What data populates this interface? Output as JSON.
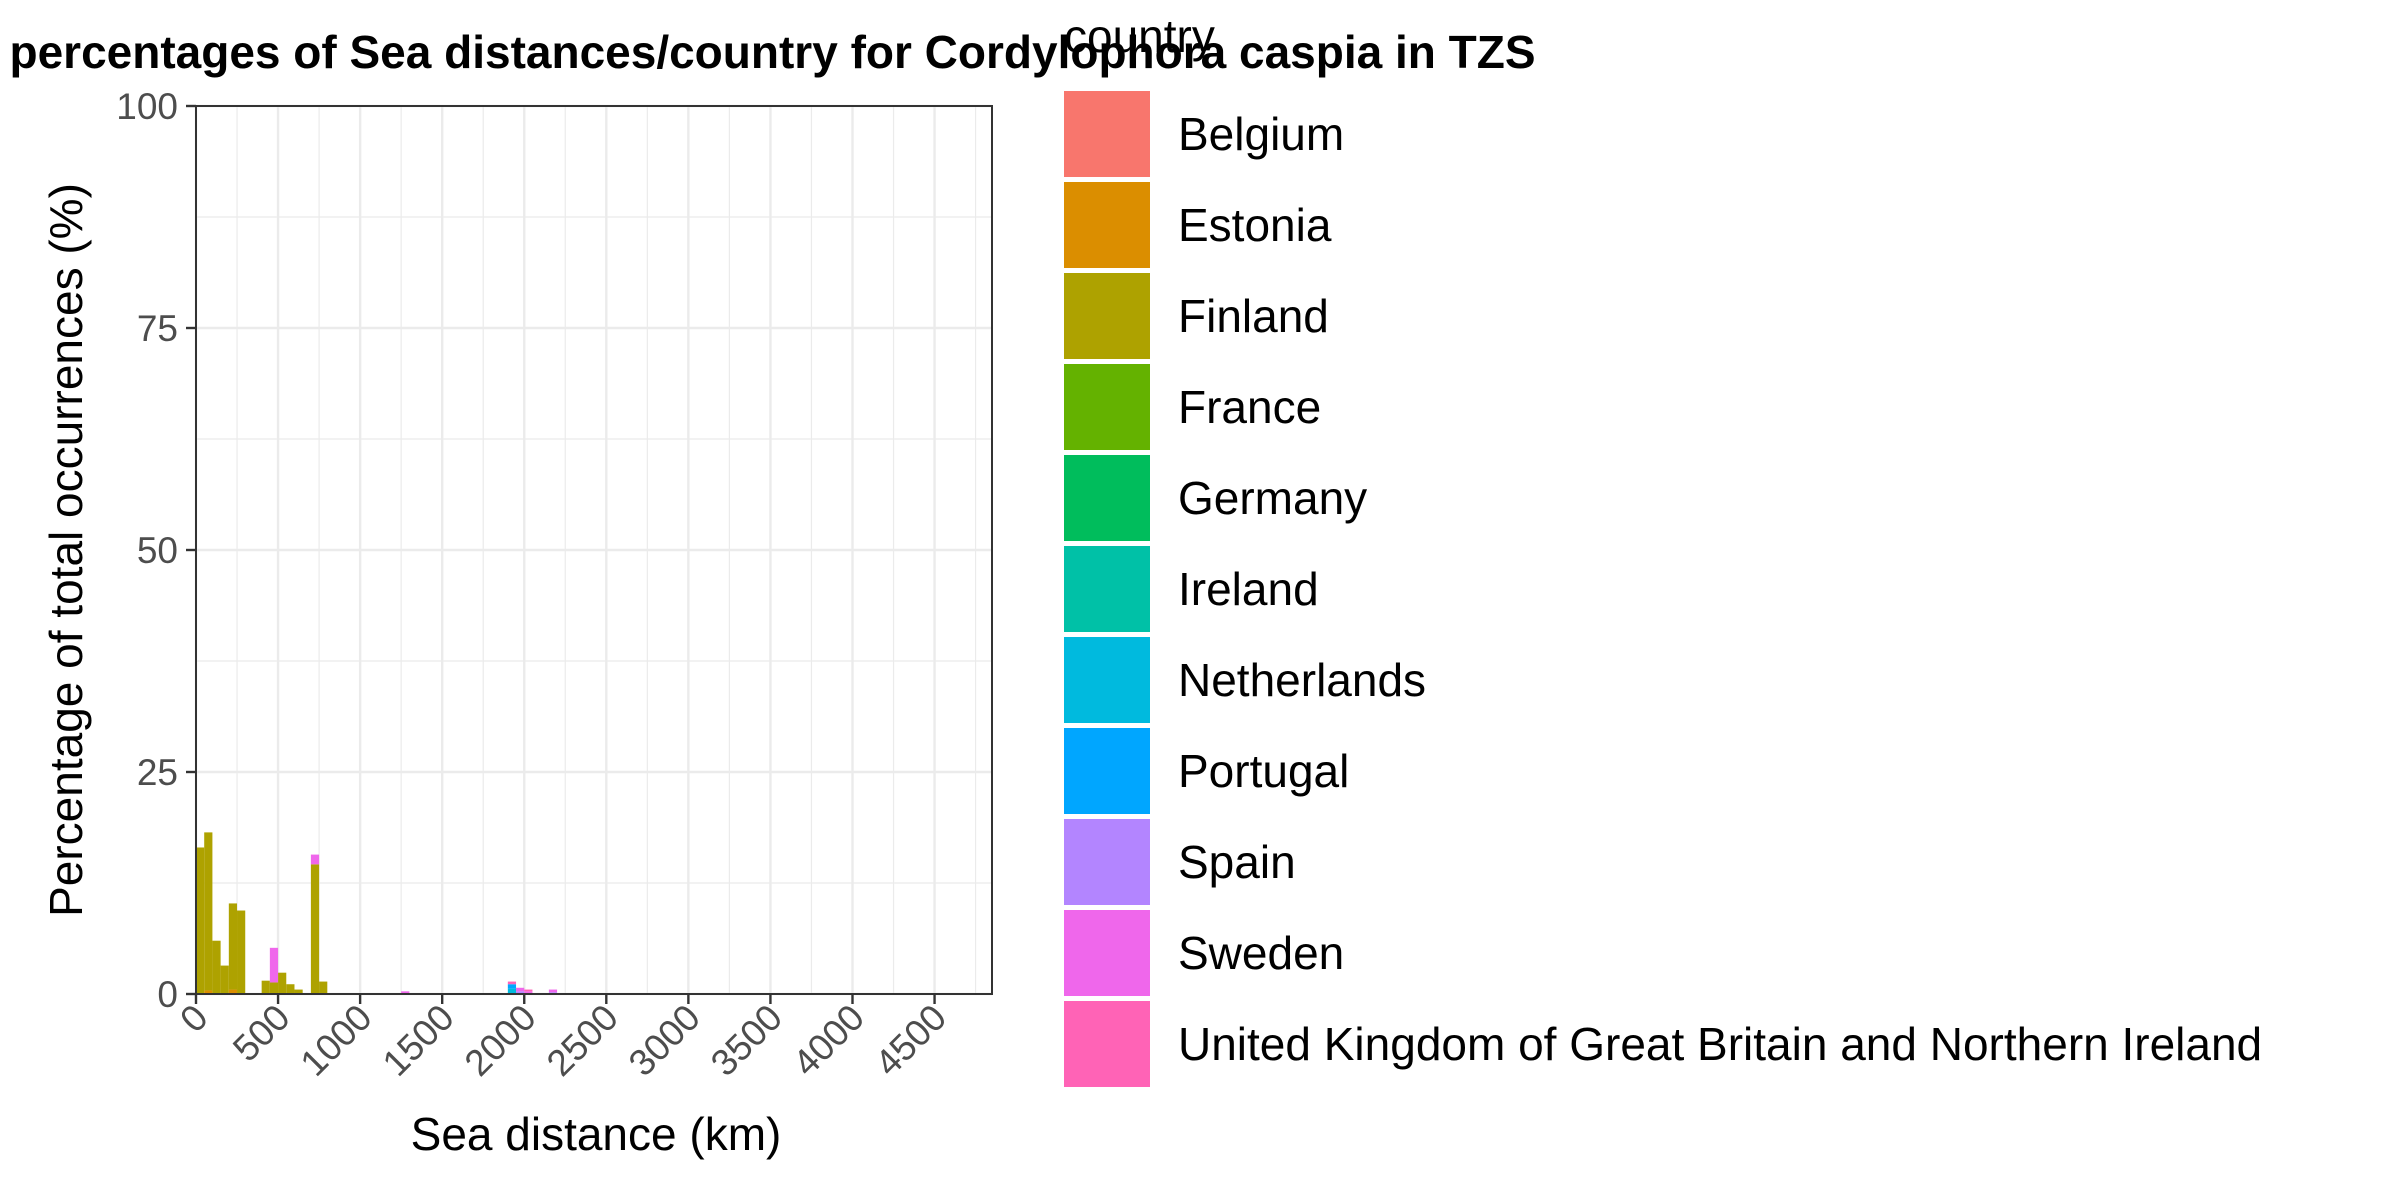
{
  "chart_data": {
    "type": "bar",
    "title": "Histogram with percentages of Sea distances/country for Cordylophora caspia in TZS",
    "xlabel": "Sea distance (km)",
    "ylabel": "Percentage of total occurrences (%)",
    "xlim": [
      0,
      4850
    ],
    "ylim": [
      0,
      100
    ],
    "x_ticks": [
      0,
      500,
      1000,
      1500,
      2000,
      2500,
      3000,
      3500,
      4000,
      4500
    ],
    "y_ticks": [
      0,
      25,
      50,
      75,
      100
    ],
    "bin_width": 50,
    "grid": true,
    "legend": {
      "title": "country",
      "position": "right"
    },
    "series": [
      {
        "name": "Belgium",
        "color": "#F8766D",
        "values": []
      },
      {
        "name": "Estonia",
        "color": "#DB8E00",
        "values": [
          {
            "x": 50,
            "y": 0.4
          },
          {
            "x": 200,
            "y": 0.5
          }
        ]
      },
      {
        "name": "Finland",
        "color": "#AEA200",
        "values": [
          {
            "x": 0,
            "y": 16.5
          },
          {
            "x": 50,
            "y": 17.8
          },
          {
            "x": 100,
            "y": 6.0
          },
          {
            "x": 150,
            "y": 3.2
          },
          {
            "x": 200,
            "y": 9.7
          },
          {
            "x": 250,
            "y": 9.4
          },
          {
            "x": 400,
            "y": 1.5
          },
          {
            "x": 450,
            "y": 1.3
          },
          {
            "x": 500,
            "y": 2.4
          },
          {
            "x": 550,
            "y": 1.1
          },
          {
            "x": 600,
            "y": 0.5
          },
          {
            "x": 700,
            "y": 14.6
          },
          {
            "x": 750,
            "y": 1.4
          }
        ]
      },
      {
        "name": "France",
        "color": "#64B200",
        "values": []
      },
      {
        "name": "Germany",
        "color": "#00BD5C",
        "values": []
      },
      {
        "name": "Ireland",
        "color": "#00C1A7",
        "values": []
      },
      {
        "name": "Netherlands",
        "color": "#00BADE",
        "values": [
          {
            "x": 1900,
            "y": 0.6
          }
        ]
      },
      {
        "name": "Portugal",
        "color": "#00A6FF",
        "values": [
          {
            "x": 1900,
            "y": 0.5
          }
        ]
      },
      {
        "name": "Spain",
        "color": "#B385FF",
        "values": [
          {
            "x": 1950,
            "y": 0.3
          },
          {
            "x": 2150,
            "y": 0.2
          }
        ]
      },
      {
        "name": "Sweden",
        "color": "#EF67EB",
        "values": [
          {
            "x": 450,
            "y": 3.9
          },
          {
            "x": 700,
            "y": 1.1
          },
          {
            "x": 1250,
            "y": 0.3
          },
          {
            "x": 1950,
            "y": 0.4
          },
          {
            "x": 2000,
            "y": 0.3
          },
          {
            "x": 2150,
            "y": 0.3
          }
        ]
      },
      {
        "name": "United Kingdom of Great Britain and Northern Ireland",
        "color": "#FF63B6",
        "values": [
          {
            "x": 1900,
            "y": 0.3
          },
          {
            "x": 2000,
            "y": 0.2
          }
        ]
      }
    ]
  }
}
